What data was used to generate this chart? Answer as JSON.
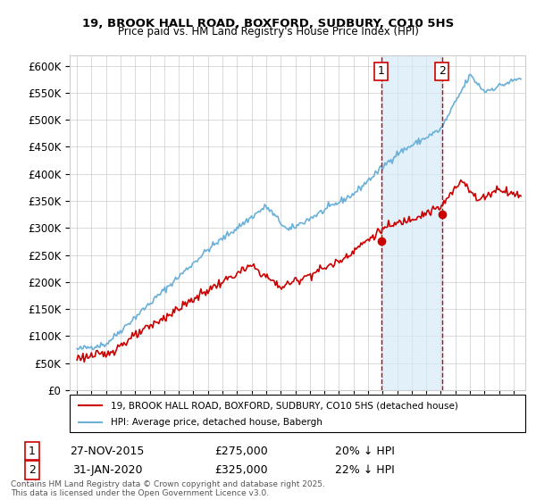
{
  "title1": "19, BROOK HALL ROAD, BOXFORD, SUDBURY, CO10 5HS",
  "title2": "Price paid vs. HM Land Registry's House Price Index (HPI)",
  "legend_line1": "19, BROOK HALL ROAD, BOXFORD, SUDBURY, CO10 5HS (detached house)",
  "legend_line2": "HPI: Average price, detached house, Babergh",
  "purchase1_date": "27-NOV-2015",
  "purchase1_price": 275000,
  "purchase1_hpi_diff": "20% ↓ HPI",
  "purchase2_date": "31-JAN-2020",
  "purchase2_price": 325000,
  "purchase2_hpi_diff": "22% ↓ HPI",
  "footer": "Contains HM Land Registry data © Crown copyright and database right 2025.\nThis data is licensed under the Open Government Licence v3.0.",
  "hpi_color": "#6ab0d8",
  "price_color": "#cc0000",
  "vline_color": "#cc0000",
  "shade_color": "#d6eaf8",
  "ylim": [
    0,
    620000
  ],
  "yticks": [
    0,
    50000,
    100000,
    150000,
    200000,
    250000,
    300000,
    350000,
    400000,
    450000,
    500000,
    550000,
    600000
  ],
  "purchase1_year": 2015.9,
  "purchase2_year": 2020.08
}
